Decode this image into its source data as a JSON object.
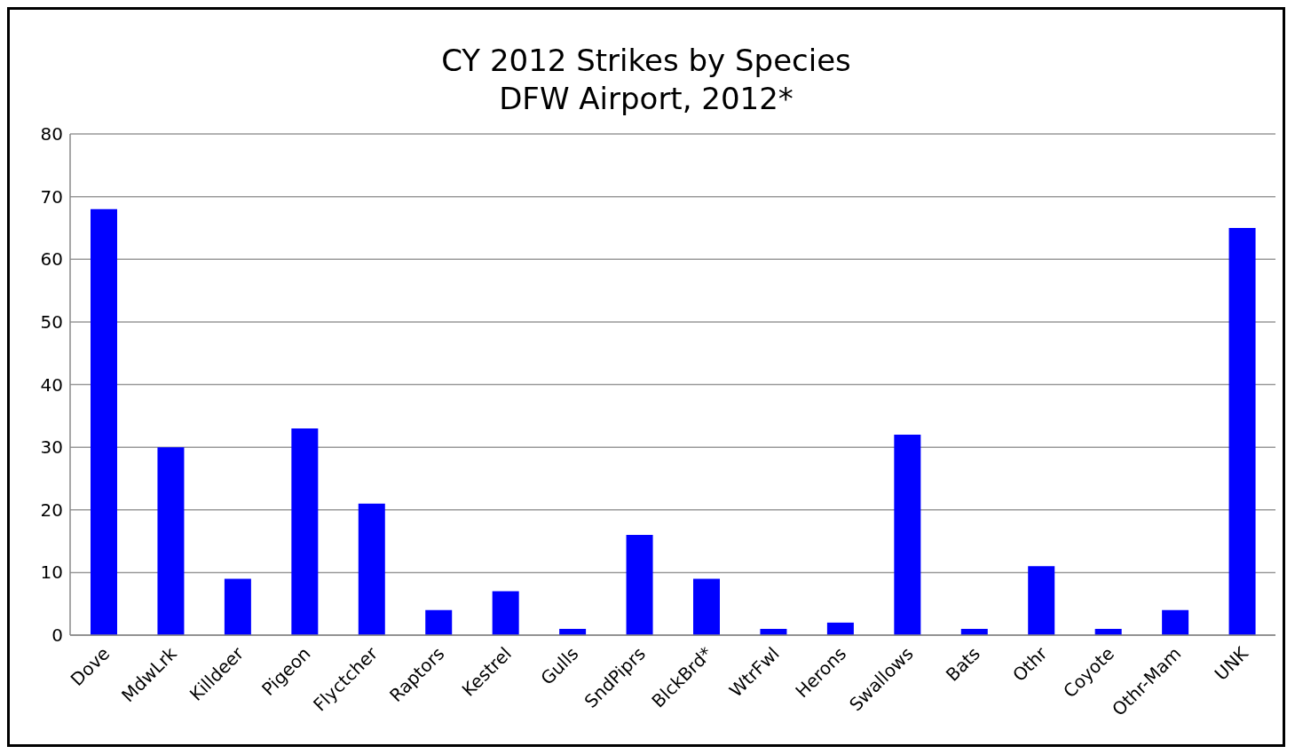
{
  "chart_data": {
    "type": "bar",
    "title": "CY 2012 Strikes by Species",
    "subtitle": "DFW Airport, 2012*",
    "categories": [
      "Dove",
      "MdwLrk",
      "Killdeer",
      "Pigeon",
      "Flyctcher",
      "Raptors",
      "Kestrel",
      "Gulls",
      "SndPiprs",
      "BlckBrd*",
      "WtrFwl",
      "Herons",
      "Swallows",
      "Bats",
      "Othr",
      "Coyote",
      "Othr-Mam",
      "UNK"
    ],
    "values": [
      68,
      30,
      9,
      33,
      21,
      4,
      7,
      1,
      16,
      9,
      1,
      2,
      32,
      1,
      11,
      1,
      4,
      65
    ],
    "color": "#0000ff",
    "ylim": [
      0,
      80
    ],
    "yticks": [
      0,
      10,
      20,
      30,
      40,
      50,
      60,
      70,
      80
    ],
    "grid": "y"
  }
}
